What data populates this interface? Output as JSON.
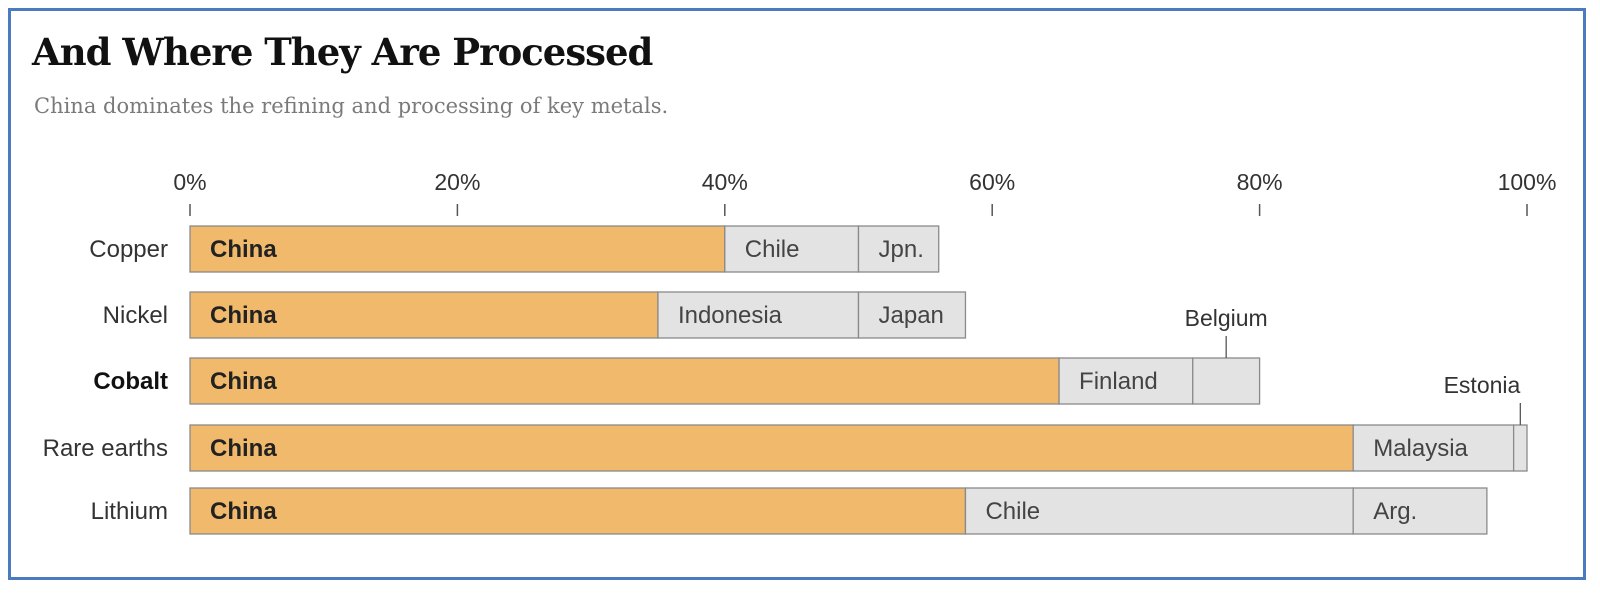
{
  "chart_data": {
    "type": "bar",
    "stacked": true,
    "orientation": "horizontal",
    "title": "And Where They Are Processed",
    "subtitle": "China dominates the refining and processing of key metals.",
    "xlim": [
      0,
      100
    ],
    "x_ticks": [
      "0%",
      "20%",
      "40%",
      "60%",
      "80%",
      "100%"
    ],
    "colors": {
      "china": "#f0b96b",
      "other": "#e3e3e3",
      "stroke": "#8a8a8a",
      "axis": "#555555"
    },
    "rows": [
      {
        "label": "Copper",
        "bold": false,
        "segments": [
          {
            "name": "China",
            "value": 40,
            "primary": true,
            "show_label": true
          },
          {
            "name": "Chile",
            "value": 10,
            "show_label": true
          },
          {
            "name": "Jpn.",
            "value": 6,
            "show_label": true
          }
        ]
      },
      {
        "label": "Nickel",
        "bold": false,
        "segments": [
          {
            "name": "China",
            "value": 35,
            "primary": true,
            "show_label": true
          },
          {
            "name": "Indonesia",
            "value": 15,
            "show_label": true
          },
          {
            "name": "Japan",
            "value": 8,
            "show_label": true
          }
        ]
      },
      {
        "label": "Cobalt",
        "bold": true,
        "segments": [
          {
            "name": "China",
            "value": 65,
            "primary": true,
            "show_label": true
          },
          {
            "name": "Finland",
            "value": 10,
            "show_label": true
          },
          {
            "name": "Belgium",
            "value": 5,
            "show_label": false,
            "callout": true
          }
        ]
      },
      {
        "label": "Rare earths",
        "bold": false,
        "segments": [
          {
            "name": "China",
            "value": 87,
            "primary": true,
            "show_label": true
          },
          {
            "name": "Malaysia",
            "value": 12,
            "show_label": true
          },
          {
            "name": "Estonia",
            "value": 1,
            "show_label": false,
            "callout": true
          }
        ]
      },
      {
        "label": "Lithium",
        "bold": false,
        "segments": [
          {
            "name": "China",
            "value": 58,
            "primary": true,
            "show_label": true
          },
          {
            "name": "Chile",
            "value": 29,
            "show_label": true
          },
          {
            "name": "Arg.",
            "value": 10,
            "show_label": true
          }
        ]
      }
    ]
  }
}
